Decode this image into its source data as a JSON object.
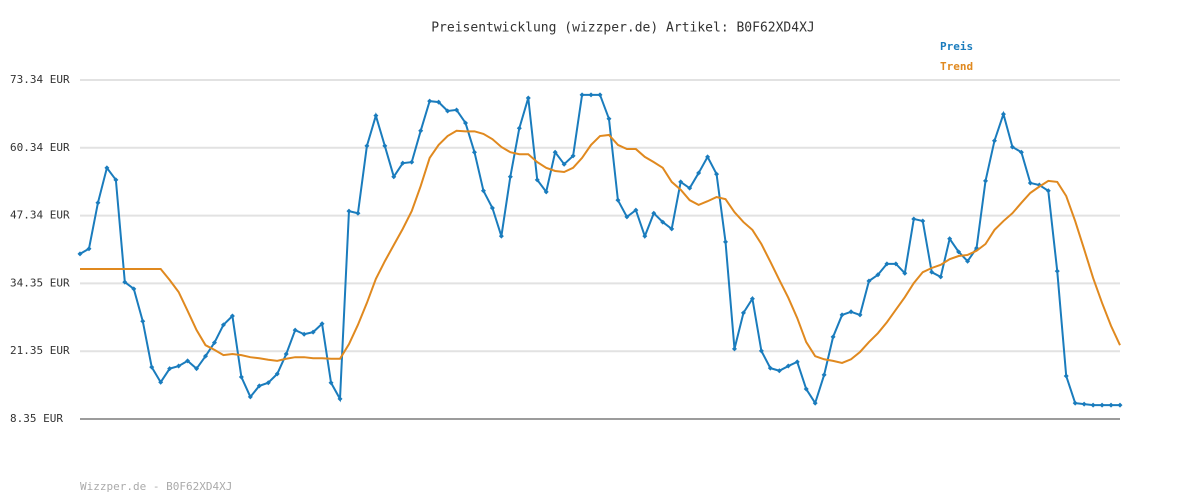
{
  "chart_data": {
    "type": "line",
    "title": "Preisentwicklung (wizzper.de) Artikel: B0F62XD4XJ",
    "footer": "Wizzper.de - B0F62XD4XJ",
    "ylim": [
      8.35,
      73.34
    ],
    "yticks": [
      {
        "value": 8.35,
        "label": "8.35 EUR"
      },
      {
        "value": 21.35,
        "label": "21.35 EUR"
      },
      {
        "value": 34.35,
        "label": "34.35 EUR"
      },
      {
        "value": 47.34,
        "label": "47.34 EUR"
      },
      {
        "value": 60.34,
        "label": "60.34 EUR"
      },
      {
        "value": 73.34,
        "label": "73.34 EUR"
      }
    ],
    "grid": true,
    "legend": "top-right",
    "series": [
      {
        "name": "Preis",
        "color": "#1a7cbd",
        "markers": true,
        "values": [
          40.0,
          41.0,
          49.8,
          56.5,
          54.2,
          34.6,
          33.3,
          27.1,
          18.3,
          15.4,
          18.0,
          18.5,
          19.5,
          18.0,
          20.4,
          23.0,
          26.4,
          28.1,
          16.4,
          12.6,
          14.7,
          15.3,
          17.0,
          20.8,
          25.4,
          24.6,
          25.0,
          26.6,
          15.3,
          12.2,
          48.2,
          47.8,
          60.7,
          66.5,
          60.7,
          54.8,
          57.4,
          57.6,
          63.6,
          69.3,
          69.1,
          67.4,
          67.6,
          65.1,
          59.5,
          52.1,
          48.8,
          43.4,
          54.8,
          64.1,
          69.9,
          54.2,
          51.9,
          59.5,
          57.2,
          58.8,
          70.5,
          70.5,
          70.5,
          65.9,
          50.3,
          47.1,
          48.4,
          43.4,
          47.8,
          46.1,
          44.8,
          53.8,
          52.6,
          55.5,
          58.6,
          55.3,
          42.3,
          21.8,
          28.7,
          31.4,
          21.4,
          18.1,
          17.6,
          18.5,
          19.3,
          14.1,
          11.4,
          16.8,
          24.1,
          28.3,
          28.9,
          28.3,
          34.8,
          36.0,
          38.1,
          38.1,
          36.3,
          46.7,
          46.3,
          36.5,
          35.6,
          42.9,
          40.4,
          38.6,
          41.1,
          54.0,
          61.7,
          66.8,
          60.5,
          59.5,
          53.6,
          53.2,
          52.1,
          36.7,
          16.6,
          11.4,
          11.2,
          11.0,
          11.0,
          11.0,
          11.0
        ]
      },
      {
        "name": "Trend",
        "color": "#e0891f",
        "markers": false,
        "values": [
          37.1,
          37.1,
          37.1,
          37.1,
          37.1,
          37.1,
          37.1,
          37.1,
          37.1,
          37.1,
          35.0,
          32.7,
          29.1,
          25.4,
          22.5,
          21.6,
          20.6,
          20.8,
          20.6,
          20.2,
          20.0,
          19.7,
          19.5,
          19.9,
          20.2,
          20.2,
          20.0,
          20.0,
          19.9,
          19.9,
          22.7,
          26.4,
          30.6,
          35.2,
          38.6,
          41.7,
          44.8,
          48.2,
          53.0,
          58.4,
          60.9,
          62.6,
          63.6,
          63.5,
          63.5,
          63.0,
          62.0,
          60.5,
          59.5,
          59.1,
          59.1,
          57.6,
          56.5,
          55.9,
          55.7,
          56.5,
          58.4,
          60.9,
          62.6,
          62.8,
          60.9,
          60.1,
          60.1,
          58.6,
          57.6,
          56.5,
          53.8,
          52.3,
          50.3,
          49.4,
          50.1,
          50.9,
          50.5,
          48.0,
          46.1,
          44.6,
          41.9,
          38.5,
          35.0,
          31.6,
          27.7,
          23.1,
          20.4,
          19.8,
          19.5,
          19.1,
          19.8,
          21.2,
          23.1,
          24.8,
          26.9,
          29.3,
          31.7,
          34.4,
          36.5,
          37.3,
          37.9,
          39.0,
          39.6,
          39.8,
          40.6,
          41.9,
          44.6,
          46.3,
          47.8,
          49.8,
          51.7,
          52.9,
          54.0,
          53.8,
          51.1,
          46.3,
          40.9,
          35.4,
          30.6,
          26.2,
          22.5
        ]
      }
    ]
  }
}
